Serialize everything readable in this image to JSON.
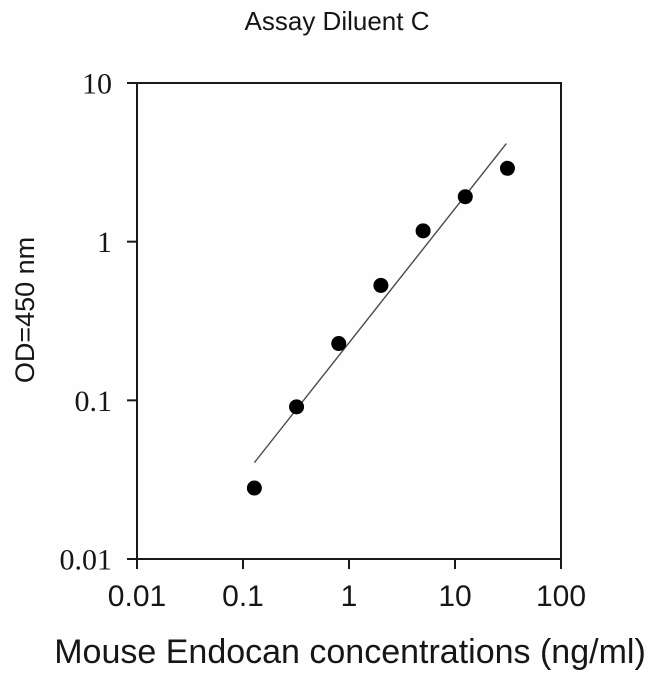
{
  "chart_data": {
    "type": "scatter",
    "title": "Assay Diluent C",
    "xlabel": "Mouse Endocan concentrations (ng/ml)",
    "ylabel": "OD=450 nm",
    "x_scale": "log",
    "y_scale": "log",
    "xlim": [
      0.01,
      100
    ],
    "ylim": [
      0.01,
      10
    ],
    "x_ticks": [
      0.01,
      0.1,
      1,
      10,
      100
    ],
    "x_tick_labels": [
      "0.01",
      "0.1",
      "1",
      "10",
      "100"
    ],
    "y_ticks": [
      10,
      1,
      0.1,
      0.01
    ],
    "y_tick_labels": [
      "10",
      "1",
      "0.1",
      "0.01"
    ],
    "grid": false,
    "legend": null,
    "frame": "full-box",
    "colors": {
      "axis": "#1a1a1a",
      "marker": "#000000",
      "fit_line": "#4a4a4a",
      "background": "#fefefe"
    },
    "series": [
      {
        "name": "standard-curve-points",
        "kind": "scatter",
        "marker": "filled-circle",
        "points": [
          {
            "x": 0.128,
            "y": 0.028
          },
          {
            "x": 0.32,
            "y": 0.091
          },
          {
            "x": 0.8,
            "y": 0.228
          },
          {
            "x": 2,
            "y": 0.53
          },
          {
            "x": 5,
            "y": 1.17
          },
          {
            "x": 12.5,
            "y": 1.92
          },
          {
            "x": 31.25,
            "y": 2.9
          }
        ]
      },
      {
        "name": "regression-fit-line",
        "kind": "line",
        "points": [
          {
            "x": 0.128,
            "y": 0.0405
          },
          {
            "x": 30.5,
            "y": 4.15
          }
        ]
      }
    ]
  }
}
